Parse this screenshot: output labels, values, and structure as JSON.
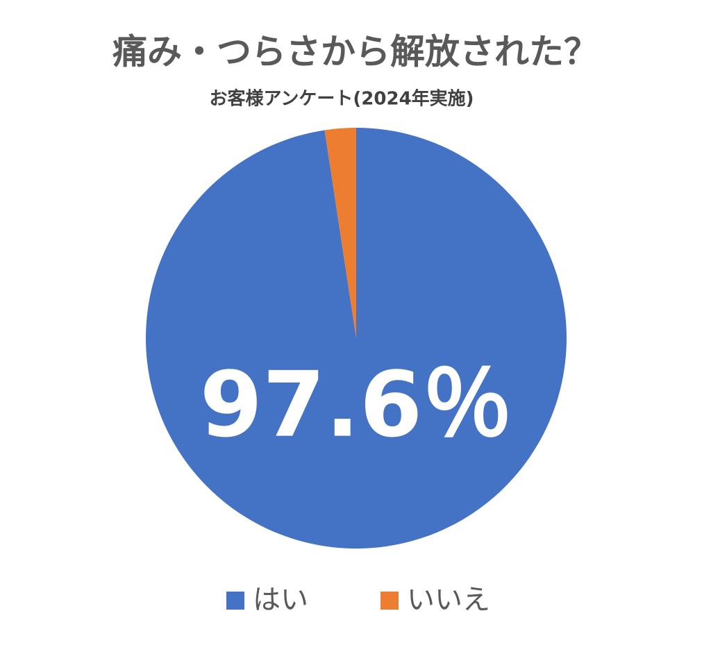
{
  "chart_data": {
    "type": "pie",
    "title": "痛み・つらさから解放された？",
    "subtitle": "お客様アンケート(2024年実施)",
    "categories": [
      "はい",
      "いいえ"
    ],
    "values": [
      97.6,
      2.4
    ],
    "value_labels": [
      "97.6％",
      null
    ],
    "colors": [
      "#4472c4",
      "#ed7d31"
    ]
  }
}
